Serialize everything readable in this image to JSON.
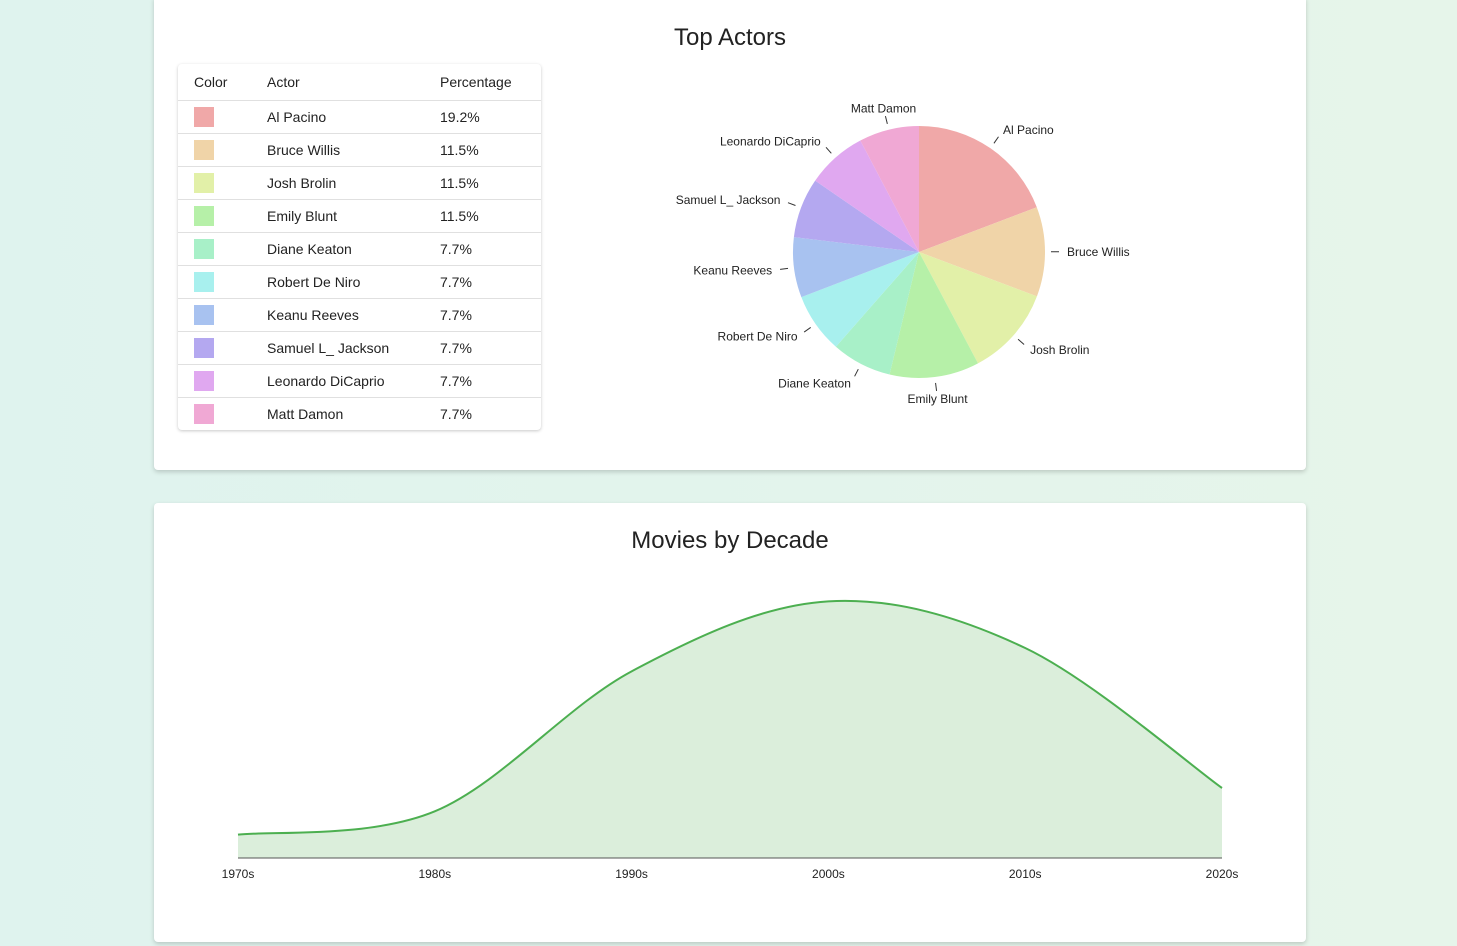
{
  "actors_card": {
    "title": "Top Actors",
    "table": {
      "headers": [
        "Color",
        "Actor",
        "Percentage"
      ]
    }
  },
  "decades_card": {
    "title": "Movies by Decade"
  },
  "chart_data": [
    {
      "type": "pie",
      "title": "Top Actors",
      "labels": [
        "Al Pacino",
        "Bruce Willis",
        "Josh Brolin",
        "Emily Blunt",
        "Diane Keaton",
        "Robert De Niro",
        "Keanu Reeves",
        "Samuel L_ Jackson",
        "Leonardo DiCaprio",
        "Matt Damon"
      ],
      "values": [
        19.2,
        11.5,
        11.5,
        11.5,
        7.7,
        7.7,
        7.7,
        7.7,
        7.7,
        7.7
      ],
      "value_labels": [
        "19.2%",
        "11.5%",
        "11.5%",
        "11.5%",
        "7.7%",
        "7.7%",
        "7.7%",
        "7.7%",
        "7.7%",
        "7.7%"
      ],
      "colors": [
        "#f0a8a8",
        "#f0d4a8",
        "#e2f0a8",
        "#b6f0a8",
        "#a8f0c8",
        "#a8f0ee",
        "#a8c2f0",
        "#b4a8f0",
        "#e0a8f0",
        "#f0a8d4"
      ]
    },
    {
      "type": "area",
      "title": "Movies by Decade",
      "categories": [
        "1970s",
        "1980s",
        "1990s",
        "2000s",
        "2010s",
        "2020s"
      ],
      "values": [
        1,
        2,
        8,
        11,
        9,
        3
      ],
      "ylim": [
        0,
        12
      ],
      "line_color": "#4caf50",
      "fill_color": "#dbeedb",
      "grid": false
    }
  ]
}
